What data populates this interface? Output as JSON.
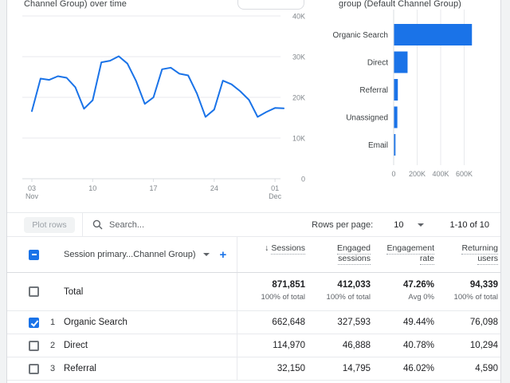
{
  "page": {
    "background": "#f1f3f4",
    "card_background": "#ffffff",
    "accent_color": "#1a73e8"
  },
  "charts": {
    "line_title": "Channel Group) over time",
    "bar_title": "group (Default Channel Group)"
  },
  "chart_data": [
    {
      "type": "line",
      "title": "Channel Group) over time",
      "series_name": "Sessions",
      "x_tick_labels": [
        {
          "line1": "03",
          "line2": "Nov",
          "day_index": 0
        },
        {
          "line1": "10",
          "line2": "",
          "day_index": 7
        },
        {
          "line1": "17",
          "line2": "",
          "day_index": 14
        },
        {
          "line1": "24",
          "line2": "",
          "day_index": 21
        },
        {
          "line1": "01",
          "line2": "Dec",
          "day_index": 28
        }
      ],
      "y_tick_labels": [
        "40K",
        "30K",
        "20K",
        "10K",
        "0"
      ],
      "ylim": [
        0,
        40000
      ],
      "values": [
        16600,
        24600,
        24300,
        25200,
        24800,
        22500,
        17200,
        19300,
        28600,
        29000,
        30100,
        28300,
        24000,
        18400,
        20000,
        26900,
        27300,
        25800,
        25400,
        21000,
        15200,
        17000,
        24100,
        23200,
        21500,
        19400,
        15200,
        16400,
        17400,
        17300
      ],
      "line_color": "#1a73e8",
      "grid": true,
      "legend": "none"
    },
    {
      "type": "bar",
      "orientation": "horizontal",
      "title": "group (Default Channel Group)",
      "categories": [
        "Organic Search",
        "Direct",
        "Referral",
        "Unassigned",
        "Email"
      ],
      "values": [
        662648,
        114970,
        32150,
        28000,
        12000
      ],
      "x_tick_labels": [
        "0",
        "200K",
        "400K",
        "600K"
      ],
      "x_tick_values": [
        0,
        200000,
        400000,
        600000
      ],
      "xlim": [
        0,
        890000
      ],
      "bar_color": "#1a73e8",
      "grid": true,
      "legend": "none"
    }
  ],
  "table": {
    "toolbar": {
      "plot_rows_label": "Plot rows",
      "search_placeholder": "Search...",
      "rows_per_page_label": "Rows per page:",
      "rows_per_page_value": "10",
      "pagination": "1-10 of 10"
    },
    "dimension_header": "Session primary...Channel Group)",
    "sort_arrow": "↓",
    "columns": [
      {
        "line1": "Sessions",
        "line2": ""
      },
      {
        "line1": "Engaged",
        "line2": "sessions"
      },
      {
        "line1": "Engagement",
        "line2": "rate"
      },
      {
        "line1": "Returning",
        "line2": "users"
      }
    ],
    "total_row": {
      "label": "Total",
      "metrics": [
        {
          "value": "871,851",
          "sub": "100% of total"
        },
        {
          "value": "412,033",
          "sub": "100% of total"
        },
        {
          "value": "47.26%",
          "sub": "Avg 0%"
        },
        {
          "value": "94,339",
          "sub": "100% of total"
        }
      ]
    },
    "rows": [
      {
        "num": "1",
        "name": "Organic Search",
        "checked": true,
        "values": [
          "662,648",
          "327,593",
          "49.44%",
          "76,098"
        ]
      },
      {
        "num": "2",
        "name": "Direct",
        "checked": false,
        "values": [
          "114,970",
          "46,888",
          "40.78%",
          "10,294"
        ]
      },
      {
        "num": "3",
        "name": "Referral",
        "checked": false,
        "values": [
          "32,150",
          "14,795",
          "46.02%",
          "4,590"
        ]
      }
    ]
  }
}
